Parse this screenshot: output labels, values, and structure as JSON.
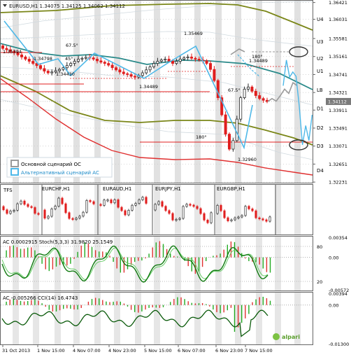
{
  "main_header": "EURUSD,H1  1.34075 1.34125 1.34062 1.34112",
  "sub_header": "TFS",
  "sub_symbols": [
    "EURCHF,H1",
    "EURAUD,H1",
    "EURJPY,H1",
    "EURGBP,H1"
  ],
  "ac_header": "AC 0.0002915  Stoch(5,3,3) 31.9820 25.1549",
  "cci_header": "AC -0.005266  CCI(14) 16.4743",
  "legend": {
    "base": "Основной сценарий ОС",
    "alt": "Альтернативный сценарий АС"
  },
  "brand": "alpari",
  "colors": {
    "base": "#9a9a9a",
    "alt": "#4db8e8",
    "bull": "#2b2b2b",
    "bear": "#e01e1e",
    "olive": "#6b7a16",
    "teal": "#2a8a8a",
    "stoch": "#0f7a0f"
  },
  "chart_data": {
    "type": "candlestick",
    "symbol": "EURUSD",
    "timeframe": "H1",
    "ohlc_last": {
      "open": 1.34075,
      "high": 1.34125,
      "low": 1.34062,
      "close": 1.34112
    },
    "current_price": 1.34112,
    "ylim": [
      1.322,
      1.3648
    ],
    "y_ticks": [
      1.36421,
      1.36031,
      1.35581,
      1.35161,
      1.34741,
      1.34321,
      1.33911,
      1.33491,
      1.33071,
      1.32651,
      1.32231
    ],
    "levels": [
      "U4",
      "U3",
      "U2",
      "U1",
      "LB",
      "D1",
      "D2",
      "D3",
      "D4"
    ],
    "x_labels": [
      "31 Oct 2013",
      "1 Nov 15:00",
      "4 Nov 07:00",
      "4 Nov 23:00",
      "5 Nov 15:00",
      "6 Nov 07:00",
      "6 Nov 23:00",
      "7 Nov 15:00"
    ],
    "price_labels": [
      "1.35394",
      "1.34798",
      "1.34430",
      "1.34489",
      "1.35469",
      "1.34489",
      "1.32960"
    ],
    "angle_labels": [
      "67.5°",
      "45°",
      "180°",
      "67.5°",
      "180°"
    ],
    "close_series": [
      1.3535,
      1.3532,
      1.3528,
      1.3525,
      1.352,
      1.3515,
      1.351,
      1.3505,
      1.35,
      1.3495,
      1.3488,
      1.3482,
      1.3478,
      1.348,
      1.3483,
      1.3486,
      1.349,
      1.3495,
      1.35,
      1.3505,
      1.351,
      1.3512,
      1.3514,
      1.3513,
      1.351,
      1.3506,
      1.3503,
      1.35,
      1.3496,
      1.349,
      1.3485,
      1.348,
      1.3476,
      1.3474,
      1.347,
      1.3468,
      1.3472,
      1.3478,
      1.3485,
      1.3492,
      1.35,
      1.3505,
      1.3508,
      1.351,
      1.3506,
      1.35,
      1.3505,
      1.351,
      1.3513,
      1.3515,
      1.3512,
      1.351,
      1.3508,
      1.3506,
      1.35,
      1.3486,
      1.346,
      1.342,
      1.338,
      1.3335,
      1.33,
      1.332,
      1.337,
      1.342,
      1.344,
      1.3445,
      1.3435,
      1.3425,
      1.3418,
      1.3414,
      1.3411
    ],
    "base_scenario": [
      1.3411,
      1.3418,
      1.3412,
      1.3425,
      1.344,
      1.343,
      1.3455,
      1.3448
    ],
    "alt_scenario": [
      1.3448,
      1.3508,
      1.3468,
      1.348,
      1.347,
      1.34,
      1.331,
      1.3355,
      1.332,
      1.338
    ],
    "ac_range": [
      -0.00572,
      0.00354
    ],
    "ac_ticks": [
      "0.00354",
      "0.00",
      "-0.00572"
    ],
    "stoch_ticks": [
      "80",
      "20"
    ],
    "cci_range": [
      -0.013,
      0.00394
    ],
    "cci_ticks": [
      "0.00394",
      "0.00",
      "-0.01300"
    ]
  }
}
